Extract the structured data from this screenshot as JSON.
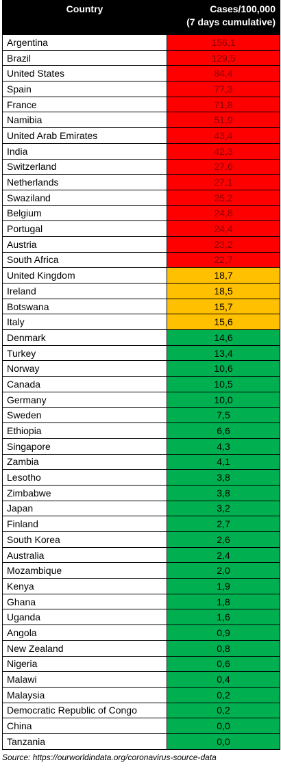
{
  "table": {
    "headers": {
      "country": "Country",
      "cases_line1": "Cases/100,000",
      "cases_line2": "(7 days cumulative)"
    },
    "colors": {
      "red": "#ff0000",
      "orange": "#ffc000",
      "green": "#00b050",
      "header": "#000000"
    },
    "rows": [
      {
        "country": "Argentina",
        "value": "156,1",
        "level": "red"
      },
      {
        "country": "Brazil",
        "value": "129,5",
        "level": "red"
      },
      {
        "country": "United States",
        "value": "84,4",
        "level": "red"
      },
      {
        "country": "Spain",
        "value": "77,3",
        "level": "red"
      },
      {
        "country": "France",
        "value": "71,8",
        "level": "red"
      },
      {
        "country": "Namibia",
        "value": "51,9",
        "level": "red"
      },
      {
        "country": "United Arab Emirates",
        "value": "43,4",
        "level": "red"
      },
      {
        "country": "India",
        "value": "42,3",
        "level": "red"
      },
      {
        "country": "Switzerland",
        "value": "27,6",
        "level": "red"
      },
      {
        "country": "Netherlands",
        "value": "27,1",
        "level": "red"
      },
      {
        "country": "Swaziland",
        "value": "25,2",
        "level": "red"
      },
      {
        "country": "Belgium",
        "value": "24,8",
        "level": "red"
      },
      {
        "country": "Portugal",
        "value": "24,4",
        "level": "red"
      },
      {
        "country": "Austria",
        "value": "23,2",
        "level": "red"
      },
      {
        "country": "South Africa",
        "value": "22,7",
        "level": "red"
      },
      {
        "country": "United Kingdom",
        "value": "18,7",
        "level": "orange"
      },
      {
        "country": "Ireland",
        "value": "18,5",
        "level": "orange"
      },
      {
        "country": "Botswana",
        "value": "15,7",
        "level": "orange"
      },
      {
        "country": "Italy",
        "value": "15,6",
        "level": "orange"
      },
      {
        "country": "Denmark",
        "value": "14,6",
        "level": "green"
      },
      {
        "country": "Turkey",
        "value": "13,4",
        "level": "green"
      },
      {
        "country": "Norway",
        "value": "10,6",
        "level": "green"
      },
      {
        "country": "Canada",
        "value": "10,5",
        "level": "green"
      },
      {
        "country": "Germany",
        "value": "10,0",
        "level": "green"
      },
      {
        "country": "Sweden",
        "value": "7,5",
        "level": "green"
      },
      {
        "country": "Ethiopia",
        "value": "6,6",
        "level": "green"
      },
      {
        "country": "Singapore",
        "value": "4,3",
        "level": "green"
      },
      {
        "country": "Zambia",
        "value": "4,1",
        "level": "green"
      },
      {
        "country": "Lesotho",
        "value": "3,8",
        "level": "green"
      },
      {
        "country": "Zimbabwe",
        "value": "3,8",
        "level": "green"
      },
      {
        "country": "Japan",
        "value": "3,2",
        "level": "green"
      },
      {
        "country": "Finland",
        "value": "2,7",
        "level": "green"
      },
      {
        "country": "South Korea",
        "value": "2,6",
        "level": "green"
      },
      {
        "country": "Australia",
        "value": "2,4",
        "level": "green"
      },
      {
        "country": "Mozambique",
        "value": "2,0",
        "level": "green"
      },
      {
        "country": "Kenya",
        "value": "1,9",
        "level": "green"
      },
      {
        "country": "Ghana",
        "value": "1,8",
        "level": "green"
      },
      {
        "country": "Uganda",
        "value": "1,6",
        "level": "green"
      },
      {
        "country": "Angola",
        "value": "0,9",
        "level": "green"
      },
      {
        "country": "New Zealand",
        "value": "0,8",
        "level": "green"
      },
      {
        "country": "Nigeria",
        "value": "0,6",
        "level": "green"
      },
      {
        "country": "Malawi",
        "value": "0,4",
        "level": "green"
      },
      {
        "country": "Malaysia",
        "value": "0,2",
        "level": "green"
      },
      {
        "country": "Democratic Republic of Congo",
        "value": "0,2",
        "level": "green"
      },
      {
        "country": "China",
        "value": "0,0",
        "level": "green"
      },
      {
        "country": "Tanzania",
        "value": "0,0",
        "level": "green"
      }
    ]
  },
  "source": "Source: https://ourworldindata.org/coronavirus-source-data"
}
